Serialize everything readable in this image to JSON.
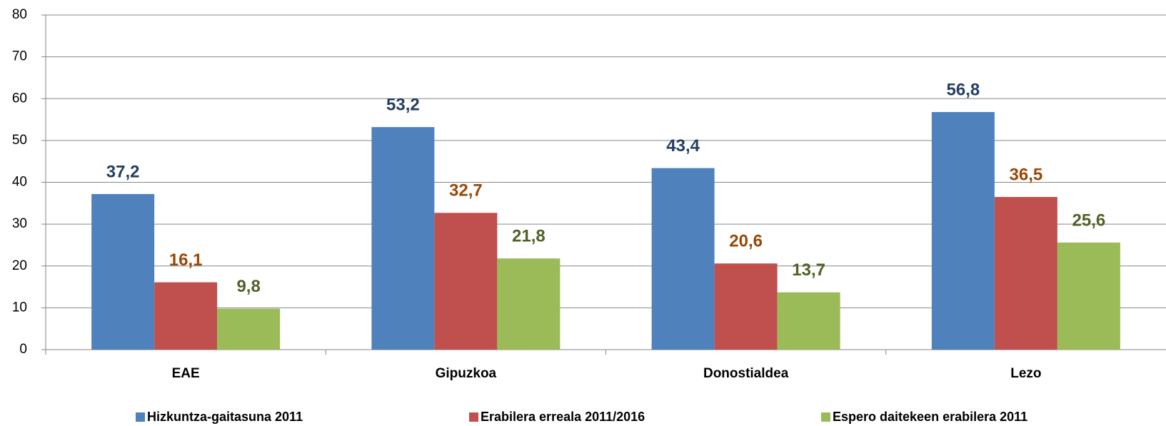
{
  "chart_data": {
    "type": "bar",
    "categories": [
      "EAE",
      "Gipuzkoa",
      "Donostialdea",
      "Lezo"
    ],
    "series": [
      {
        "name": "Hizkuntza-gaitasuna 2011",
        "color": "#4f81bd",
        "label_color": "#243f60",
        "values": [
          37.2,
          53.2,
          43.4,
          56.8
        ],
        "value_labels": [
          "37,2",
          "53,2",
          "43,4",
          "56,8"
        ]
      },
      {
        "name": "Erabilera erreala 2011/2016",
        "color": "#c0504d",
        "label_color": "#984807",
        "values": [
          16.1,
          32.7,
          20.6,
          36.5
        ],
        "value_labels": [
          "16,1",
          "32,7",
          "20,6",
          "36,5"
        ]
      },
      {
        "name": "Espero daitekeen erabilera 2011",
        "color": "#9bbb59",
        "label_color": "#4f6228",
        "values": [
          9.8,
          21.8,
          13.7,
          25.6
        ],
        "value_labels": [
          "9,8",
          "21,8",
          "13,7",
          "25,6"
        ]
      }
    ],
    "ylim": [
      0,
      80
    ],
    "yticks": [
      0,
      10,
      20,
      30,
      40,
      50,
      60,
      70,
      80
    ],
    "grid": true,
    "legend": "bottom"
  }
}
